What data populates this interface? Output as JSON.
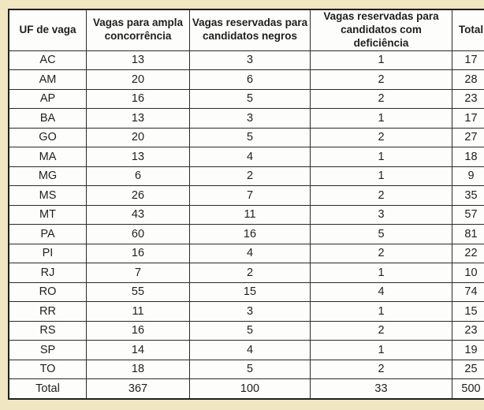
{
  "page": {
    "background_color": "#f0e6c2",
    "cell_background_color": "#fdfdfb",
    "border_color": "#1f1f1f",
    "text_color": "#1f1f1f"
  },
  "table": {
    "headers": [
      "UF de vaga",
      "Vagas para ampla concorrência",
      "Vagas reservadas para candidatos negros",
      "Vagas reservadas para candidatos com deficiência",
      "Total"
    ],
    "rows": [
      [
        "AC",
        "13",
        "3",
        "1",
        "17"
      ],
      [
        "AM",
        "20",
        "6",
        "2",
        "28"
      ],
      [
        "AP",
        "16",
        "5",
        "2",
        "23"
      ],
      [
        "BA",
        "13",
        "3",
        "1",
        "17"
      ],
      [
        "GO",
        "20",
        "5",
        "2",
        "27"
      ],
      [
        "MA",
        "13",
        "4",
        "1",
        "18"
      ],
      [
        "MG",
        "6",
        "2",
        "1",
        "9"
      ],
      [
        "MS",
        "26",
        "7",
        "2",
        "35"
      ],
      [
        "MT",
        "43",
        "11",
        "3",
        "57"
      ],
      [
        "PA",
        "60",
        "16",
        "5",
        "81"
      ],
      [
        "PI",
        "16",
        "4",
        "2",
        "22"
      ],
      [
        "RJ",
        "7",
        "2",
        "1",
        "10"
      ],
      [
        "RO",
        "55",
        "15",
        "4",
        "74"
      ],
      [
        "RR",
        "11",
        "3",
        "1",
        "15"
      ],
      [
        "RS",
        "16",
        "5",
        "2",
        "23"
      ],
      [
        "SP",
        "14",
        "4",
        "1",
        "19"
      ],
      [
        "TO",
        "18",
        "5",
        "2",
        "25"
      ]
    ],
    "total_row": [
      "Total",
      "367",
      "100",
      "33",
      "500"
    ]
  },
  "chart_data": {
    "type": "table",
    "title": "",
    "columns": [
      "UF de vaga",
      "Vagas para ampla concorrência",
      "Vagas reservadas para candidatos negros",
      "Vagas reservadas para candidatos com deficiência",
      "Total"
    ],
    "rows": [
      [
        "AC",
        13,
        3,
        1,
        17
      ],
      [
        "AM",
        20,
        6,
        2,
        28
      ],
      [
        "AP",
        16,
        5,
        2,
        23
      ],
      [
        "BA",
        13,
        3,
        1,
        17
      ],
      [
        "GO",
        20,
        5,
        2,
        27
      ],
      [
        "MA",
        13,
        4,
        1,
        18
      ],
      [
        "MG",
        6,
        2,
        1,
        9
      ],
      [
        "MS",
        26,
        7,
        2,
        35
      ],
      [
        "MT",
        43,
        11,
        3,
        57
      ],
      [
        "PA",
        60,
        16,
        5,
        81
      ],
      [
        "PI",
        16,
        4,
        2,
        22
      ],
      [
        "RJ",
        7,
        2,
        1,
        10
      ],
      [
        "RO",
        55,
        15,
        4,
        74
      ],
      [
        "RR",
        11,
        3,
        1,
        15
      ],
      [
        "RS",
        16,
        5,
        2,
        23
      ],
      [
        "SP",
        14,
        4,
        1,
        19
      ],
      [
        "TO",
        18,
        5,
        2,
        25
      ],
      [
        "Total",
        367,
        100,
        33,
        500
      ]
    ]
  }
}
